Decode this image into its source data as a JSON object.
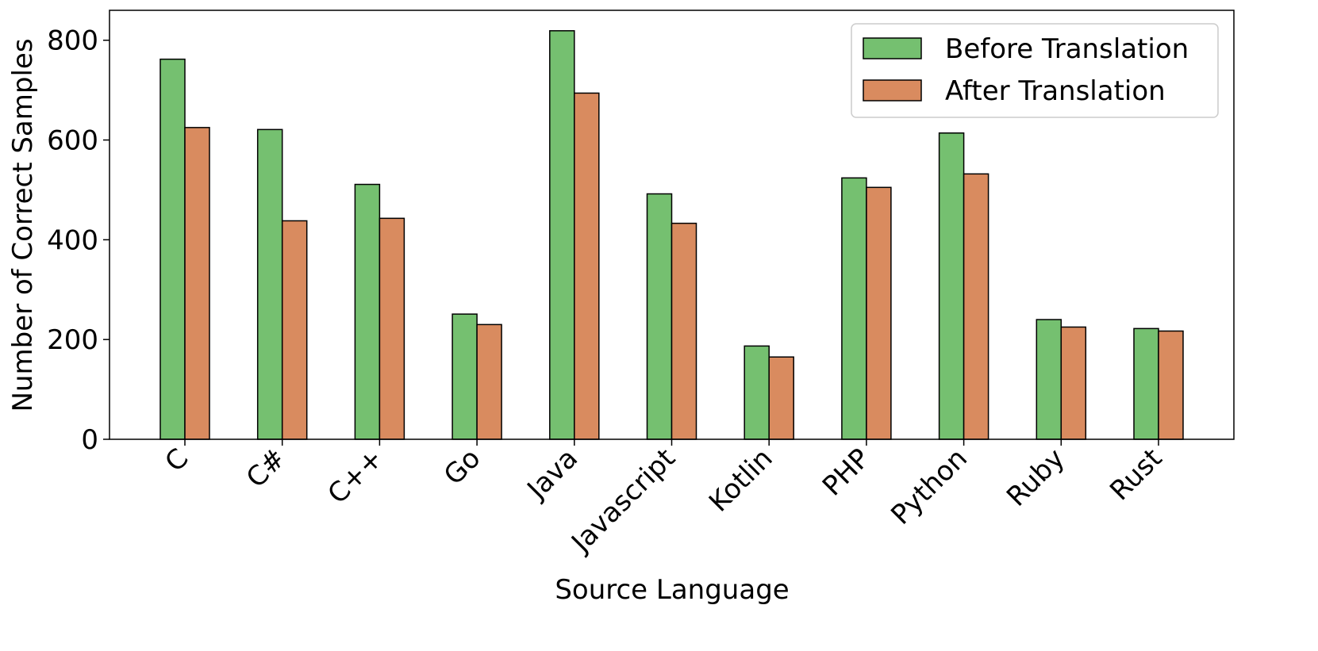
{
  "chart_data": {
    "type": "bar",
    "x_label": "Source Language",
    "y_label": "Number of Correct Samples",
    "categories": [
      "C",
      "C#",
      "C++",
      "Go",
      "Java",
      "Javascript",
      "Kotlin",
      "PHP",
      "Python",
      "Ruby",
      "Rust"
    ],
    "series": [
      {
        "name": "Before Translation",
        "color": "#75c070",
        "values": [
          762,
          621,
          511,
          251,
          819,
          492,
          187,
          524,
          614,
          240,
          222
        ]
      },
      {
        "name": "After Translation",
        "color": "#d98b5f",
        "values": [
          625,
          438,
          443,
          230,
          694,
          433,
          165,
          505,
          532,
          225,
          217
        ]
      }
    ],
    "ylim": [
      0,
      860
    ],
    "yticks": [
      0,
      200,
      400,
      600,
      800
    ],
    "legend": "upper right",
    "grid": false
  }
}
